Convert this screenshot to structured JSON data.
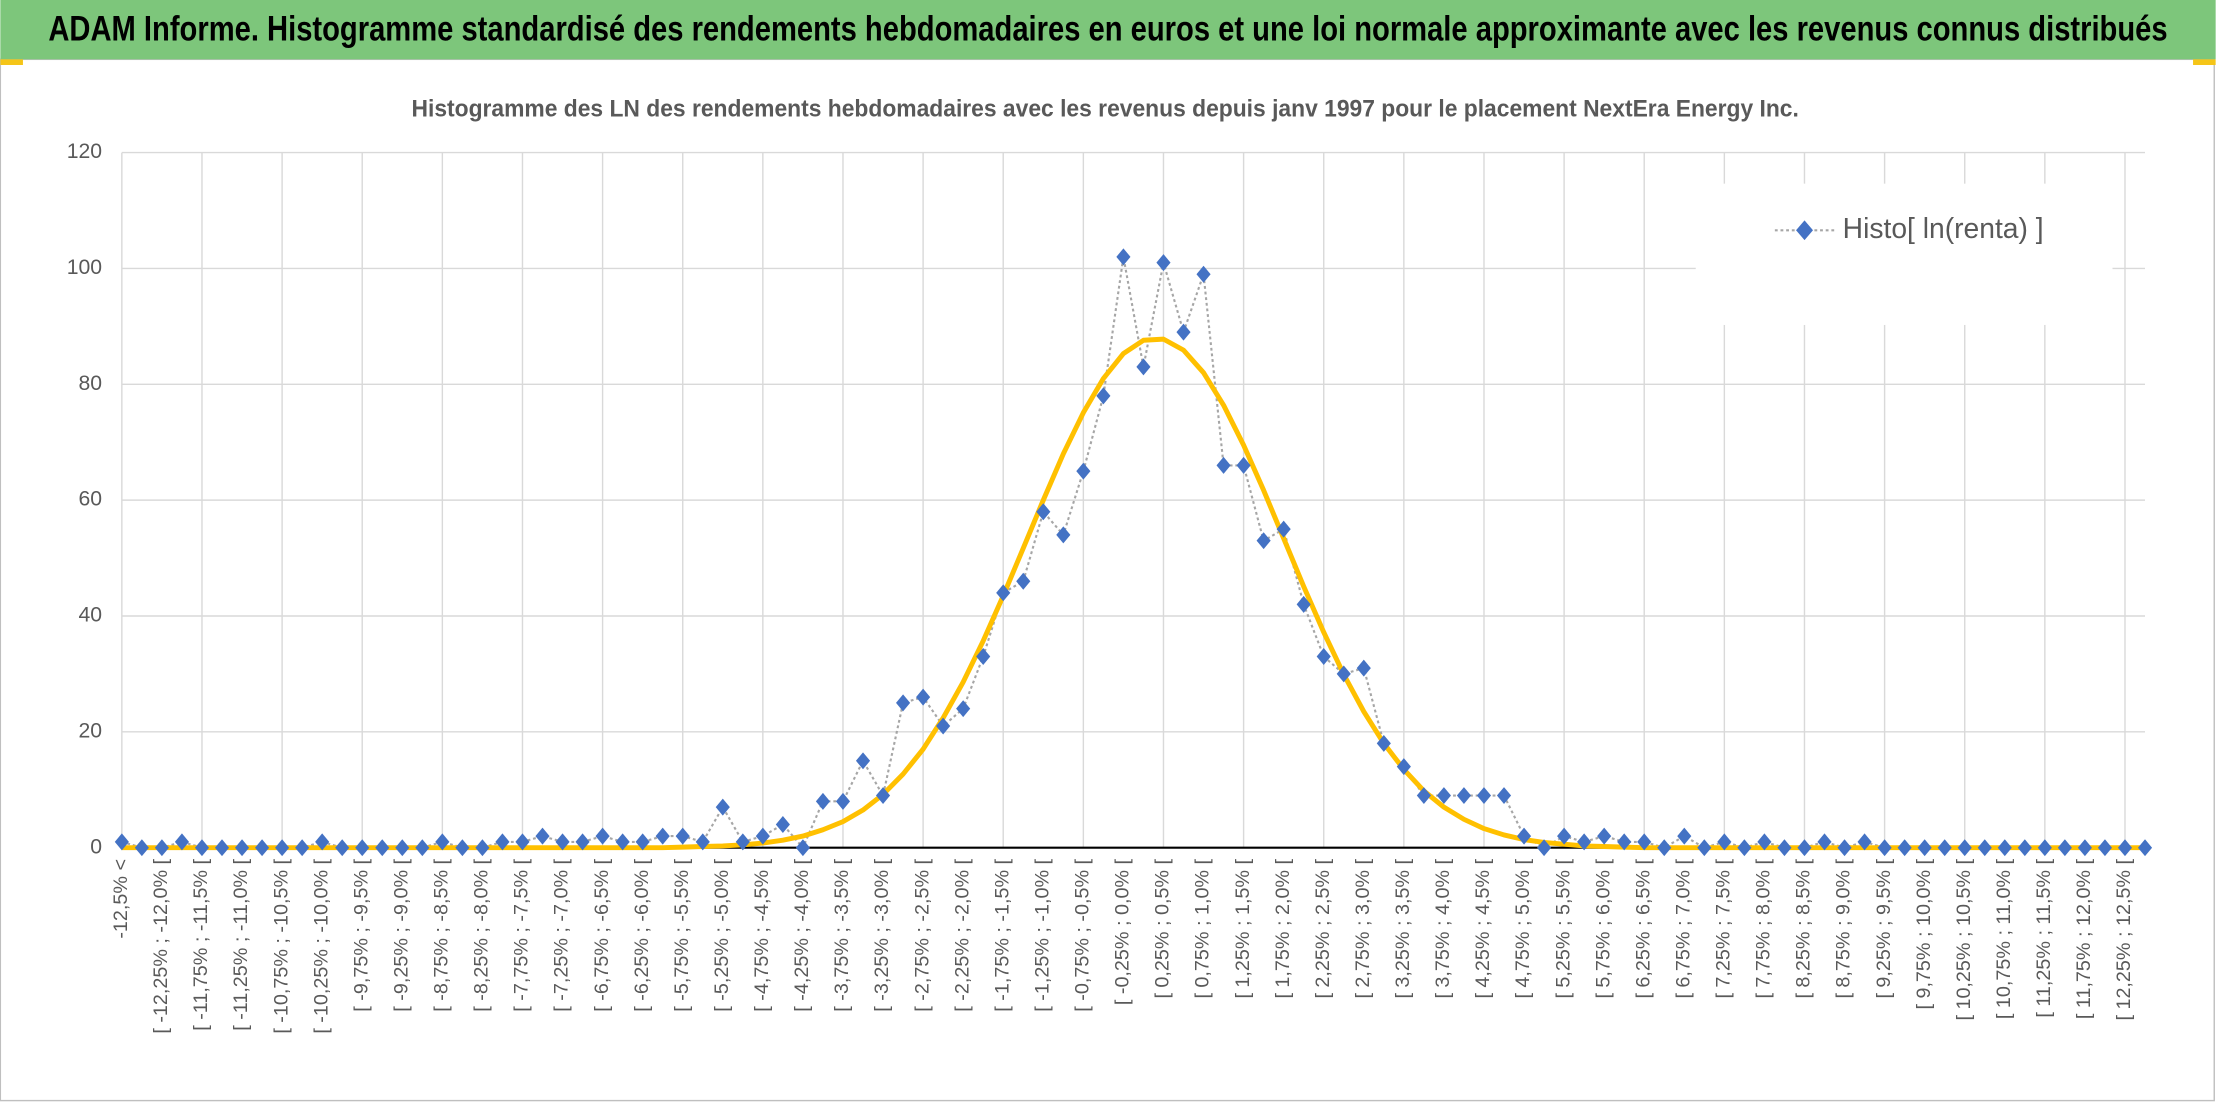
{
  "header": {
    "title": "ADAM Informe. Histogramme standardisé des rendements hebdomadaires en euros et une loi normale approximante avec les revenus connus distribués"
  },
  "chart_data": {
    "type": "line",
    "title": "Histogramme des LN des rendements hebdomadaires avec les revenus depuis janv 1997 pour le placement NextEra Energy Inc.",
    "categories": [
      "-12,5% <",
      null,
      "[ -12,25% ; -12,0% [",
      null,
      "[ -11,75% ; -11,5% [",
      null,
      "[ -11,25% ; -11,0% [",
      null,
      "[ -10,75% ; -10,5% [",
      null,
      "[ -10,25% ; -10,0% [",
      null,
      "[ -9,75% ; -9,5% [",
      null,
      "[ -9,25% ; -9,0% [",
      null,
      "[ -8,75% ; -8,5% [",
      null,
      "[ -8,25% ; -8,0% [",
      null,
      "[ -7,75% ; -7,5% [",
      null,
      "[ -7,25% ; -7,0% [",
      null,
      "[ -6,75% ; -6,5% [",
      null,
      "[ -6,25% ; -6,0% [",
      null,
      "[ -5,75% ; -5,5% [",
      null,
      "[ -5,25% ; -5,0% [",
      null,
      "[ -4,75% ; -4,5% [",
      null,
      "[ -4,25% ; -4,0% [",
      null,
      "[ -3,75% ; -3,5% [",
      null,
      "[ -3,25% ; -3,0% [",
      null,
      "[ -2,75% ; -2,5% [",
      null,
      "[ -2,25% ; -2,0% [",
      null,
      "[ -1,75% ; -1,5% [",
      null,
      "[ -1,25% ; -1,0% [",
      null,
      "[ -0,75% ; -0,5% [",
      null,
      "[ -0,25% ; 0,0% [",
      null,
      "[ 0,25% ; 0,5% [",
      null,
      "[ 0,75% ; 1,0% [",
      null,
      "[ 1,25% ; 1,5% [",
      null,
      "[ 1,75% ; 2,0% [",
      null,
      "[ 2,25% ; 2,5% [",
      null,
      "[ 2,75% ; 3,0% [",
      null,
      "[ 3,25% ; 3,5% [",
      null,
      "[ 3,75% ; 4,0% [",
      null,
      "[ 4,25% ; 4,5% [",
      null,
      "[ 4,75% ; 5,0% [",
      null,
      "[ 5,25% ; 5,5% [",
      null,
      "[ 5,75% ; 6,0% [",
      null,
      "[ 6,25% ; 6,5% [",
      null,
      "[ 6,75% ; 7,0% [",
      null,
      "[ 7,25% ; 7,5% [",
      null,
      "[ 7,75% ; 8,0% [",
      null,
      "[ 8,25% ; 8,5% [",
      null,
      "[ 8,75% ; 9,0% [",
      null,
      "[ 9,25% ; 9,5% [",
      null,
      "[ 9,75% ; 10,0% [",
      null,
      "[ 10,25% ; 10,5% [",
      null,
      "[ 10,75% ; 11,0% [",
      null,
      "[ 11,25% ; 11,5% [",
      null,
      "[ 11,75% ; 12,0% [",
      null,
      "[ 12,25% ; 12,5% [",
      null
    ],
    "series": [
      {
        "name": "Histo[ ln(renta) ]",
        "color": "#4472c4",
        "line_color": "#a6a6a6",
        "values": [
          1,
          0,
          0,
          1,
          0,
          0,
          0,
          0,
          0,
          0,
          1,
          0,
          0,
          0,
          0,
          0,
          1,
          0,
          0,
          1,
          1,
          2,
          1,
          1,
          2,
          1,
          1,
          2,
          2,
          1,
          7,
          1,
          2,
          4,
          0,
          8,
          8,
          15,
          9,
          25,
          26,
          21,
          24,
          33,
          44,
          46,
          58,
          54,
          65,
          78,
          102,
          83,
          101,
          89,
          99,
          66,
          66,
          53,
          55,
          42,
          33,
          30,
          31,
          18,
          14,
          9,
          9,
          9,
          9,
          9,
          2,
          0,
          2,
          1,
          2,
          1,
          1,
          0,
          2,
          0,
          1,
          0,
          1,
          0,
          0,
          1,
          0,
          1,
          0,
          0,
          0,
          0,
          0,
          0,
          0,
          0,
          0,
          0,
          0,
          0,
          0,
          0
        ]
      },
      {
        "color": "#ffc000",
        "values": [
          0,
          0,
          0,
          0,
          0,
          0,
          0,
          0,
          0,
          0,
          0,
          0,
          0,
          0,
          0,
          0,
          0,
          0,
          0,
          0,
          0,
          0,
          0,
          0,
          0,
          0,
          0,
          0,
          0.1,
          0.2,
          0.3,
          0.5,
          0.8,
          1.3,
          2.0,
          3.1,
          4.5,
          6.5,
          9.2,
          12.7,
          17,
          22.4,
          28.6,
          35.7,
          43.5,
          51.7,
          60,
          68,
          75.1,
          81,
          85.3,
          87.6,
          87.8,
          85.9,
          82,
          76.4,
          69.5,
          61.7,
          53.4,
          45.1,
          37.2,
          29.9,
          23.5,
          18,
          13.5,
          9.8,
          7,
          4.9,
          3.3,
          2.2,
          1.4,
          0.9,
          0.6,
          0.3,
          0.2,
          0.1,
          0,
          0,
          0,
          0,
          0,
          0,
          0,
          0,
          0,
          0,
          0,
          0,
          0,
          0,
          0,
          0,
          0,
          0,
          0,
          0,
          0,
          0,
          0,
          0,
          0,
          0
        ]
      }
    ],
    "ylim": [
      0,
      120
    ],
    "yticks": [
      0,
      20,
      40,
      60,
      80,
      100,
      120
    ],
    "grid": true,
    "legend": "upper right"
  }
}
